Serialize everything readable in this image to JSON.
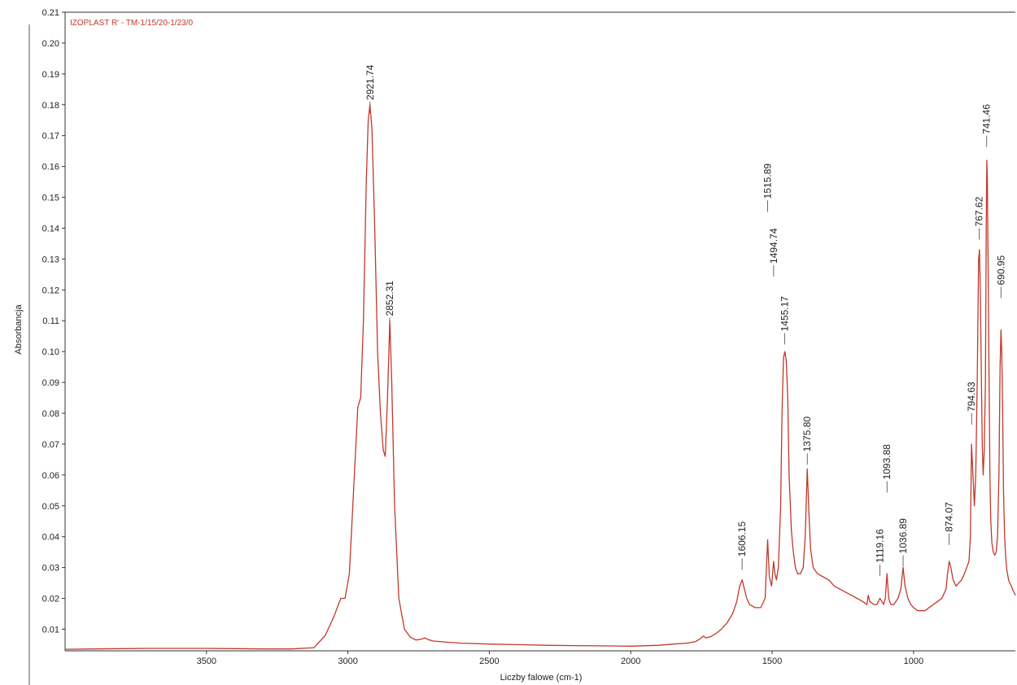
{
  "chart_data": {
    "type": "line",
    "title": "IZOPLAST R' - TM-1/15/20-1/23/0",
    "xlabel": "Liczby falowe (cm-1)",
    "ylabel": "Absorbancja",
    "x_reversed": true,
    "xlim": [
      4000,
      640
    ],
    "ylim": [
      0.003,
      0.21
    ],
    "x_ticks": [
      3500,
      3000,
      2500,
      2000,
      1500,
      1000
    ],
    "y_ticks": [
      0.01,
      0.02,
      0.03,
      0.04,
      0.05,
      0.06,
      0.07,
      0.08,
      0.09,
      0.1,
      0.11,
      0.12,
      0.13,
      0.14,
      0.15,
      0.16,
      0.17,
      0.18,
      0.19,
      0.2,
      0.21
    ],
    "y_tick_labels": [
      "0.01",
      "0.02",
      "0.03",
      "0.04",
      "0.05",
      "0.06",
      "0.07",
      "0.08",
      "0.09",
      "0.10",
      "0.11",
      "0.12",
      "0.13",
      "0.14",
      "0.15",
      "0.16",
      "0.17",
      "0.18",
      "0.19",
      "0.20",
      "0.21"
    ],
    "grid": false,
    "line_color": "#c0392b",
    "series": [
      {
        "x": [
          4000,
          3900,
          3800,
          3700,
          3600,
          3500,
          3400,
          3300,
          3200,
          3120,
          3080,
          3050,
          3025,
          3010,
          2995,
          2980,
          2965,
          2955,
          2945,
          2935,
          2928,
          2922,
          2915,
          2905,
          2895,
          2885,
          2875,
          2868,
          2860,
          2852,
          2845,
          2835,
          2820,
          2800,
          2780,
          2760,
          2740,
          2728,
          2715,
          2700,
          2650,
          2600,
          2500,
          2400,
          2300,
          2200,
          2100,
          2000,
          1900,
          1850,
          1800,
          1770,
          1750,
          1742,
          1735,
          1720,
          1700,
          1680,
          1660,
          1640,
          1625,
          1615,
          1606,
          1598,
          1590,
          1580,
          1560,
          1540,
          1525,
          1516,
          1510,
          1502,
          1495,
          1490,
          1485,
          1478,
          1470,
          1465,
          1460,
          1455,
          1450,
          1445,
          1440,
          1432,
          1425,
          1418,
          1410,
          1400,
          1390,
          1383,
          1376,
          1370,
          1364,
          1355,
          1340,
          1320,
          1300,
          1280,
          1260,
          1240,
          1220,
          1200,
          1180,
          1165,
          1160,
          1155,
          1140,
          1130,
          1119,
          1112,
          1106,
          1100,
          1094,
          1088,
          1080,
          1070,
          1055,
          1045,
          1037,
          1030,
          1020,
          1010,
          1000,
          985,
          970,
          960,
          945,
          930,
          915,
          900,
          885,
          880,
          874,
          868,
          860,
          850,
          840,
          830,
          820,
          812,
          804,
          799,
          795,
          790,
          785,
          780,
          775,
          770,
          767,
          764,
          760,
          757,
          754,
          750,
          746,
          743,
          741,
          739,
          736,
          733,
          730,
          727,
          723,
          718,
          713,
          708,
          703,
          698,
          694,
          691,
          688,
          685,
          682,
          678,
          674,
          670,
          664,
          660,
          654,
          650,
          645,
          640
        ],
        "y": [
          0.0035,
          0.0036,
          0.0037,
          0.0038,
          0.0038,
          0.0038,
          0.0037,
          0.0036,
          0.0036,
          0.004,
          0.008,
          0.014,
          0.02,
          0.02,
          0.028,
          0.055,
          0.082,
          0.085,
          0.11,
          0.155,
          0.175,
          0.18,
          0.172,
          0.14,
          0.1,
          0.08,
          0.068,
          0.066,
          0.085,
          0.11,
          0.09,
          0.05,
          0.02,
          0.01,
          0.0075,
          0.0065,
          0.0068,
          0.0072,
          0.0066,
          0.0062,
          0.0058,
          0.0055,
          0.0052,
          0.005,
          0.0048,
          0.0047,
          0.0046,
          0.0045,
          0.0048,
          0.0052,
          0.0055,
          0.006,
          0.0072,
          0.0078,
          0.0072,
          0.0075,
          0.0085,
          0.01,
          0.012,
          0.015,
          0.019,
          0.024,
          0.026,
          0.023,
          0.02,
          0.018,
          0.017,
          0.017,
          0.02,
          0.039,
          0.027,
          0.024,
          0.032,
          0.028,
          0.026,
          0.03,
          0.05,
          0.08,
          0.098,
          0.1,
          0.097,
          0.085,
          0.06,
          0.042,
          0.035,
          0.03,
          0.028,
          0.028,
          0.03,
          0.04,
          0.062,
          0.048,
          0.036,
          0.03,
          0.028,
          0.027,
          0.026,
          0.024,
          0.023,
          0.022,
          0.021,
          0.02,
          0.019,
          0.018,
          0.021,
          0.019,
          0.018,
          0.018,
          0.02,
          0.019,
          0.018,
          0.02,
          0.028,
          0.02,
          0.018,
          0.018,
          0.02,
          0.023,
          0.03,
          0.024,
          0.02,
          0.018,
          0.017,
          0.016,
          0.016,
          0.016,
          0.017,
          0.018,
          0.019,
          0.02,
          0.023,
          0.028,
          0.032,
          0.03,
          0.026,
          0.024,
          0.025,
          0.026,
          0.028,
          0.03,
          0.032,
          0.04,
          0.07,
          0.06,
          0.05,
          0.06,
          0.09,
          0.13,
          0.133,
          0.12,
          0.09,
          0.07,
          0.06,
          0.068,
          0.09,
          0.14,
          0.162,
          0.155,
          0.125,
          0.09,
          0.06,
          0.045,
          0.038,
          0.035,
          0.034,
          0.035,
          0.04,
          0.06,
          0.095,
          0.107,
          0.1,
          0.08,
          0.055,
          0.04,
          0.033,
          0.029,
          0.026,
          0.025,
          0.024,
          0.023,
          0.022,
          0.021
        ]
      }
    ],
    "peak_labels": [
      {
        "x": 2921.74,
        "text": "2921.74",
        "y_top": 0.181
      },
      {
        "x": 2852.31,
        "text": "2852.31",
        "y_top": 0.111
      },
      {
        "x": 1606.15,
        "text": "1606.15",
        "y_top": 0.033
      },
      {
        "x": 1515.89,
        "text": "1515.89",
        "y_top": 0.149
      },
      {
        "x": 1494.74,
        "text": "1494.74",
        "y_top": 0.128
      },
      {
        "x": 1455.17,
        "text": "1455.17",
        "y_top": 0.106
      },
      {
        "x": 1375.8,
        "text": "1375.80",
        "y_top": 0.067
      },
      {
        "x": 1119.16,
        "text": "1119.16",
        "y_top": 0.031
      },
      {
        "x": 1093.88,
        "text": "1093.88",
        "y_top": 0.058
      },
      {
        "x": 1036.89,
        "text": "1036.89",
        "y_top": 0.034
      },
      {
        "x": 874.07,
        "text": "874.07",
        "y_top": 0.041
      },
      {
        "x": 794.63,
        "text": "794.63",
        "y_top": 0.08
      },
      {
        "x": 767.62,
        "text": "767.62",
        "y_top": 0.14
      },
      {
        "x": 741.46,
        "text": "741.46",
        "y_top": 0.17
      },
      {
        "x": 690.95,
        "text": "690.95",
        "y_top": 0.121
      }
    ]
  }
}
